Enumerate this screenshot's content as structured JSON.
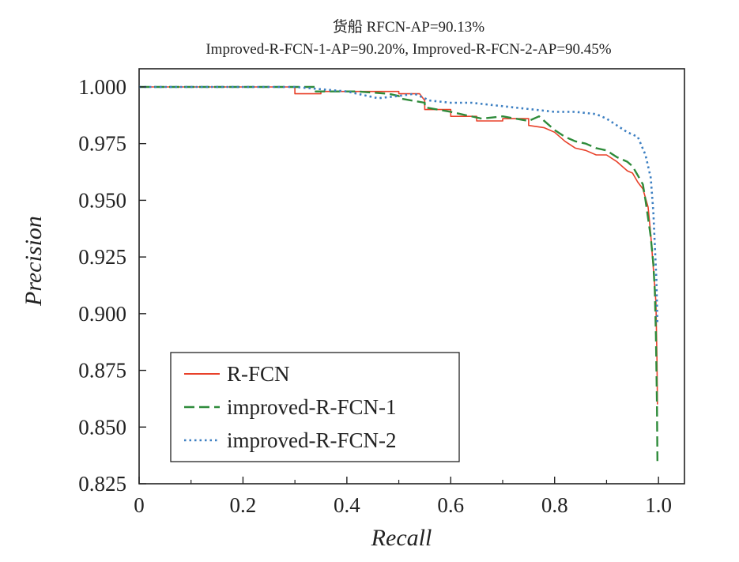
{
  "chart_data": {
    "type": "line",
    "title": "货船  RFCN-AP=90.13%",
    "subtitle": "Improved-R-FCN-1-AP=90.20%, Improved-R-FCN-2-AP=90.45%",
    "xlabel": "Recall",
    "ylabel": "Precision",
    "xlim": [
      0,
      1.05
    ],
    "ylim": [
      0.825,
      1.008
    ],
    "xticks": [
      0,
      0.2,
      0.4,
      0.6,
      0.8,
      1.0
    ],
    "xtick_labels": [
      "0",
      "0.2",
      "0.4",
      "0.6",
      "0.8",
      "1.0"
    ],
    "yticks": [
      0.825,
      0.85,
      0.875,
      0.9,
      0.925,
      0.95,
      0.975,
      1.0
    ],
    "ytick_labels": [
      "0.825",
      "0.850",
      "0.875",
      "0.900",
      "0.925",
      "0.950",
      "0.975",
      "1.000"
    ],
    "grid": false,
    "legend_position": "bottom-left",
    "series": [
      {
        "name": "R-FCN",
        "color": "#e8412a",
        "style": "solid",
        "x": [
          0,
          0.3,
          0.3,
          0.35,
          0.35,
          0.42,
          0.42,
          0.5,
          0.5,
          0.54,
          0.55,
          0.55,
          0.6,
          0.6,
          0.65,
          0.65,
          0.7,
          0.7,
          0.75,
          0.75,
          0.78,
          0.8,
          0.82,
          0.84,
          0.86,
          0.88,
          0.9,
          0.92,
          0.93,
          0.94,
          0.95,
          0.96,
          0.97,
          0.98,
          0.985,
          0.99,
          0.995,
          0.997,
          0.998
        ],
        "y": [
          1.0,
          1.0,
          0.997,
          0.997,
          0.998,
          0.998,
          0.998,
          0.998,
          0.997,
          0.997,
          0.994,
          0.99,
          0.99,
          0.987,
          0.987,
          0.985,
          0.985,
          0.986,
          0.986,
          0.983,
          0.982,
          0.98,
          0.976,
          0.973,
          0.972,
          0.97,
          0.97,
          0.967,
          0.965,
          0.963,
          0.962,
          0.958,
          0.955,
          0.947,
          0.935,
          0.92,
          0.905,
          0.88,
          0.86
        ]
      },
      {
        "name": "improved-R-FCN-1",
        "color": "#2e8b3a",
        "style": "dashed",
        "x": [
          0,
          0.3,
          0.34,
          0.34,
          0.42,
          0.48,
          0.5,
          0.5,
          0.55,
          0.55,
          0.6,
          0.62,
          0.66,
          0.7,
          0.75,
          0.77,
          0.8,
          0.82,
          0.84,
          0.86,
          0.88,
          0.9,
          0.92,
          0.94,
          0.95,
          0.96,
          0.97,
          0.975,
          0.98,
          0.985,
          0.99,
          0.993,
          0.995,
          0.997,
          0.998
        ],
        "y": [
          1.0,
          1.0,
          1.0,
          0.998,
          0.998,
          0.997,
          0.996,
          0.995,
          0.993,
          0.991,
          0.989,
          0.988,
          0.986,
          0.987,
          0.985,
          0.987,
          0.981,
          0.978,
          0.976,
          0.975,
          0.973,
          0.972,
          0.969,
          0.967,
          0.965,
          0.961,
          0.957,
          0.95,
          0.942,
          0.934,
          0.922,
          0.91,
          0.89,
          0.86,
          0.835
        ]
      },
      {
        "name": "improved-R-FCN-2",
        "color": "#3c7fc2",
        "style": "dotted",
        "x": [
          0,
          0.3,
          0.4,
          0.44,
          0.46,
          0.5,
          0.53,
          0.56,
          0.6,
          0.64,
          0.68,
          0.72,
          0.76,
          0.8,
          0.84,
          0.88,
          0.9,
          0.92,
          0.94,
          0.96,
          0.975,
          0.985,
          0.99,
          0.993,
          0.996,
          0.998
        ],
        "y": [
          1.0,
          1.0,
          0.998,
          0.996,
          0.995,
          0.996,
          0.997,
          0.994,
          0.993,
          0.993,
          0.992,
          0.991,
          0.99,
          0.989,
          0.989,
          0.988,
          0.986,
          0.983,
          0.98,
          0.978,
          0.97,
          0.96,
          0.945,
          0.93,
          0.915,
          0.895
        ]
      }
    ]
  }
}
